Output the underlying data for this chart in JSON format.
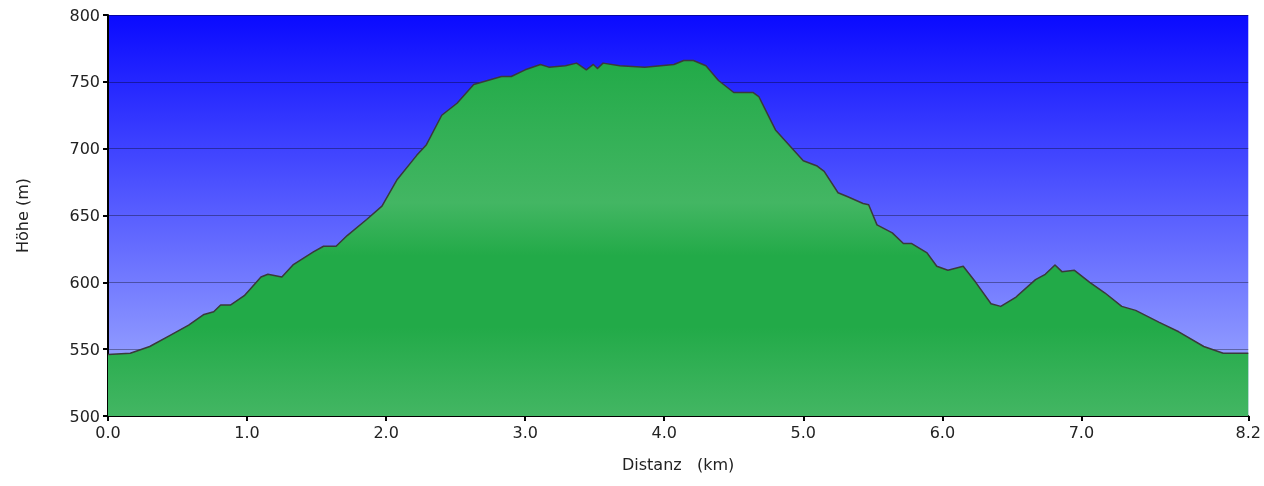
{
  "chart_data": {
    "type": "area",
    "xlabel": "Distanz   (km)",
    "ylabel": "Höhe (m)",
    "x": [
      0,
      0.16,
      0.3,
      0.44,
      0.58,
      0.69,
      0.76,
      0.81,
      0.88,
      0.98,
      1.1,
      1.15,
      1.25,
      1.33,
      1.48,
      1.55,
      1.64,
      1.72,
      1.86,
      1.97,
      2.08,
      2.22,
      2.29,
      2.4,
      2.51,
      2.63,
      2.83,
      2.9,
      3.0,
      3.11,
      3.17,
      3.29,
      3.37,
      3.44,
      3.49,
      3.52,
      3.56,
      3.68,
      3.86,
      4.07,
      4.14,
      4.21,
      4.3,
      4.39,
      4.5,
      4.64,
      4.68,
      4.8,
      4.93,
      5.0,
      5.1,
      5.15,
      5.25,
      5.32,
      5.43,
      5.47,
      5.53,
      5.64,
      5.72,
      5.78,
      5.89,
      5.96,
      6.04,
      6.15,
      6.24,
      6.35,
      6.42,
      6.53,
      6.67,
      6.74,
      6.81,
      6.86,
      6.95,
      7.06,
      7.17,
      7.29,
      7.39,
      7.56,
      7.7,
      7.88,
      8.02,
      8.2
    ],
    "series": [
      {
        "color": "#22aa48",
        "values": [
          546,
          547,
          552,
          560,
          568,
          576,
          578,
          583,
          583,
          590,
          604,
          606,
          604,
          613,
          623,
          627,
          627,
          635,
          647,
          657,
          677,
          695,
          703,
          725,
          734,
          748,
          754,
          754,
          759,
          763,
          761,
          762,
          764,
          759,
          763,
          760,
          764,
          762,
          761,
          763,
          766,
          766,
          762,
          751,
          742,
          742,
          739,
          714,
          699,
          691,
          687,
          683,
          667,
          664,
          659,
          658,
          643,
          637,
          629,
          629,
          622,
          612,
          609,
          612,
          600,
          584,
          582,
          589,
          602,
          606,
          613,
          608,
          609,
          600,
          592,
          582,
          579,
          570,
          563,
          552,
          547,
          547
        ]
      }
    ],
    "xlim": [
      0,
      8.2
    ],
    "xticks": [
      {
        "value": 0,
        "label": "0.0"
      },
      {
        "value": 1,
        "label": "1.0"
      },
      {
        "value": 2,
        "label": "2.0"
      },
      {
        "value": 3,
        "label": "3.0"
      },
      {
        "value": 4,
        "label": "4.0"
      },
      {
        "value": 5,
        "label": "5.0"
      },
      {
        "value": 6,
        "label": "6.0"
      },
      {
        "value": 7,
        "label": "7.0"
      },
      {
        "value": 8.2,
        "label": "8.2"
      }
    ],
    "ylim": [
      500,
      800
    ],
    "yticks": [
      500,
      550,
      600,
      650,
      700,
      750,
      800
    ],
    "grid": "y",
    "marker": "none",
    "line_style": "solid"
  }
}
